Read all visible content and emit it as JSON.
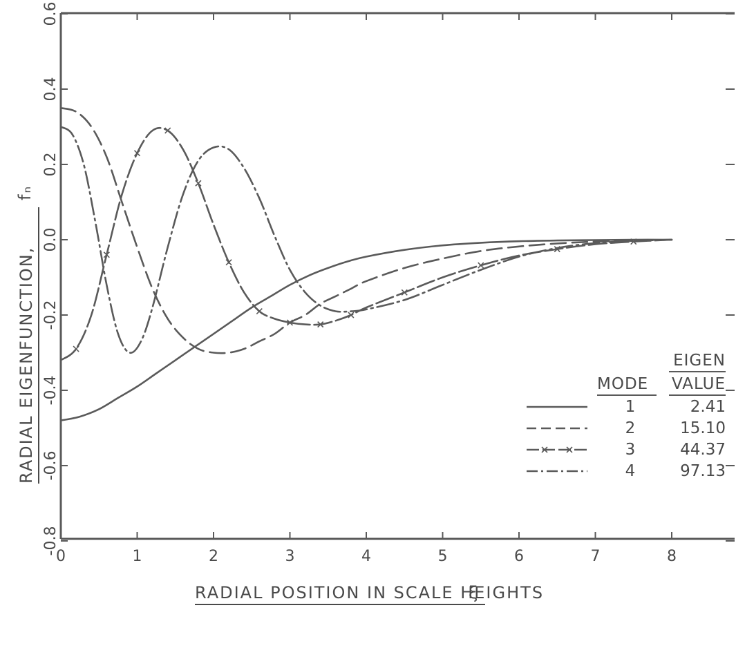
{
  "chart_data": {
    "type": "line",
    "title": "",
    "xlabel": "RADIAL POSITION IN SCALE HEIGHTS",
    "xlabel_symbol": "ξ",
    "ylabel": "RADIAL EIGENFUNCTION,",
    "ylabel_symbol": "fₙ",
    "xlim": [
      0,
      9
    ],
    "ylim": [
      -0.8,
      0.6
    ],
    "x_ticks": [
      0,
      1,
      2,
      3,
      4,
      5,
      6,
      7,
      8
    ],
    "x_tick_labels": [
      "0",
      "1",
      "2",
      "3",
      "4",
      "5",
      "6",
      "7",
      "8"
    ],
    "y_ticks": [
      -0.8,
      -0.6,
      -0.4,
      -0.2,
      0.0,
      0.2,
      0.4,
      0.6
    ],
    "y_tick_labels": [
      "-0.8",
      "-0.6",
      "-0.4",
      "-0.2",
      "0.0",
      "0.2",
      "0.4",
      "0.6"
    ],
    "grid": false,
    "legend": {
      "placement": "bottom-right",
      "header_col1": "MODE",
      "header_col2_line1": "EIGEN",
      "header_col2_line2": "VALUE",
      "rows": [
        {
          "mode": "1",
          "eigenvalue": "2.41",
          "style": "solid"
        },
        {
          "mode": "2",
          "eigenvalue": "15.10",
          "style": "dashed"
        },
        {
          "mode": "3",
          "eigenvalue": "44.37",
          "style": "dash-x"
        },
        {
          "mode": "4",
          "eigenvalue": "97.13",
          "style": "dash-dot"
        }
      ]
    },
    "series": [
      {
        "style": "solid",
        "x": [
          0,
          0.25,
          0.5,
          0.75,
          1,
          1.25,
          1.5,
          1.75,
          2,
          2.25,
          2.5,
          2.75,
          3,
          3.25,
          3.5,
          3.75,
          4,
          4.5,
          5,
          5.5,
          6,
          6.5,
          7,
          7.5,
          8
        ],
        "y": [
          -0.48,
          -0.47,
          -0.45,
          -0.42,
          -0.39,
          -0.355,
          -0.32,
          -0.285,
          -0.25,
          -0.215,
          -0.18,
          -0.15,
          -0.12,
          -0.095,
          -0.075,
          -0.058,
          -0.045,
          -0.027,
          -0.015,
          -0.008,
          -0.004,
          -0.002,
          -0.001,
          0,
          0
        ]
      },
      {
        "style": "dashed",
        "x": [
          0,
          0.2,
          0.4,
          0.6,
          0.8,
          1.0,
          1.2,
          1.4,
          1.6,
          1.8,
          2.0,
          2.2,
          2.4,
          2.6,
          2.8,
          3.0,
          3.2,
          3.4,
          3.6,
          3.8,
          4.0,
          4.5,
          5,
          5.5,
          6,
          6.5,
          7,
          7.5,
          8
        ],
        "y": [
          0.35,
          0.34,
          0.3,
          0.22,
          0.1,
          -0.02,
          -0.13,
          -0.21,
          -0.26,
          -0.29,
          -0.3,
          -0.3,
          -0.29,
          -0.27,
          -0.25,
          -0.22,
          -0.2,
          -0.17,
          -0.15,
          -0.13,
          -0.11,
          -0.075,
          -0.05,
          -0.03,
          -0.018,
          -0.01,
          -0.005,
          -0.002,
          0
        ]
      },
      {
        "style": "dash-x",
        "x": [
          0,
          0.2,
          0.4,
          0.6,
          0.8,
          1.0,
          1.2,
          1.4,
          1.6,
          1.8,
          2.0,
          2.2,
          2.4,
          2.6,
          2.8,
          3.0,
          3.2,
          3.4,
          3.6,
          3.8,
          4.0,
          4.5,
          5,
          5.5,
          6,
          6.5,
          7,
          7.5,
          8
        ],
        "y": [
          -0.32,
          -0.29,
          -0.2,
          -0.04,
          0.12,
          0.23,
          0.29,
          0.29,
          0.24,
          0.15,
          0.04,
          -0.06,
          -0.14,
          -0.19,
          -0.21,
          -0.22,
          -0.225,
          -0.225,
          -0.215,
          -0.2,
          -0.18,
          -0.14,
          -0.1,
          -0.068,
          -0.042,
          -0.025,
          -0.012,
          -0.005,
          0
        ]
      },
      {
        "style": "dash-dot",
        "x": [
          0,
          0.15,
          0.3,
          0.45,
          0.6,
          0.75,
          0.9,
          1.05,
          1.2,
          1.4,
          1.6,
          1.8,
          2.0,
          2.2,
          2.4,
          2.6,
          2.8,
          3.0,
          3.2,
          3.4,
          3.6,
          3.8,
          4.0,
          4.5,
          5,
          5.5,
          6,
          6.5,
          7,
          7.5,
          8
        ],
        "y": [
          0.3,
          0.28,
          0.2,
          0.05,
          -0.12,
          -0.25,
          -0.3,
          -0.27,
          -0.18,
          -0.02,
          0.12,
          0.21,
          0.245,
          0.24,
          0.19,
          0.11,
          0.01,
          -0.08,
          -0.14,
          -0.175,
          -0.19,
          -0.19,
          -0.185,
          -0.16,
          -0.12,
          -0.08,
          -0.045,
          -0.022,
          -0.009,
          -0.003,
          0
        ]
      }
    ]
  }
}
